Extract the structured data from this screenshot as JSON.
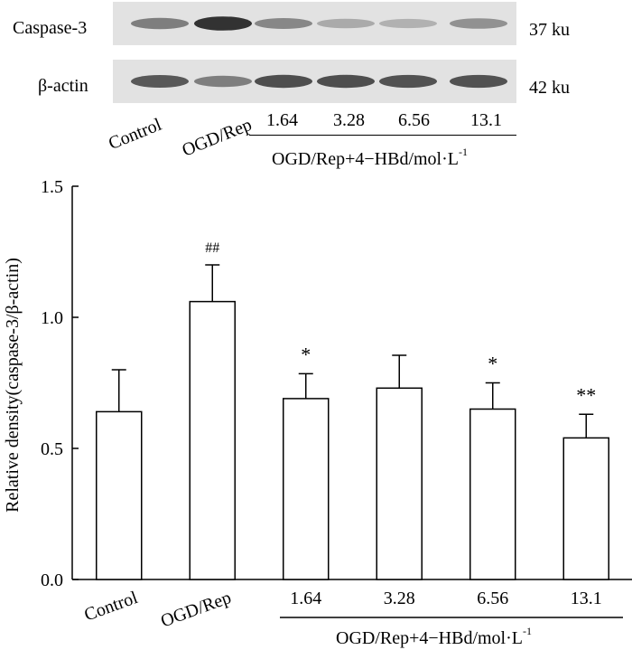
{
  "blot": {
    "rows": [
      {
        "label": "Caspase-3",
        "size": "37 ku",
        "intensity": [
          0.55,
          0.95,
          0.5,
          0.32,
          0.28,
          0.45
        ]
      },
      {
        "label": "β-actin",
        "size": "42 ku",
        "intensity": [
          0.75,
          0.55,
          0.8,
          0.8,
          0.78,
          0.78
        ]
      }
    ],
    "lane_labels": [
      "Control",
      "OGD/Rep",
      "1.64",
      "3.28",
      "6.56",
      "13.1"
    ],
    "group_label": "OGD/Rep+4−HBd/mol·L",
    "group_label_exp": "-1"
  },
  "chart_data": {
    "type": "bar",
    "categories": [
      "Control",
      "OGD/Rep",
      "1.64",
      "3.28",
      "6.56",
      "13.1"
    ],
    "values": [
      0.64,
      1.06,
      0.69,
      0.73,
      0.65,
      0.54
    ],
    "errors": [
      0.16,
      0.14,
      0.095,
      0.125,
      0.1,
      0.09
    ],
    "annotations": [
      "",
      "##",
      "*",
      "",
      "*",
      "**"
    ],
    "ylabel": "Relative density(caspase-3/β-actin)",
    "ylim": [
      0.0,
      1.5
    ],
    "yticks": [
      "0.0",
      "0.5",
      "1.0",
      "1.5"
    ],
    "ytick_values": [
      0.0,
      0.5,
      1.0,
      1.5
    ],
    "group_label": "OGD/Rep+4−HBd/mol·L",
    "group_label_exp": "-1",
    "grid": false,
    "bar_fill": "#ffffff",
    "bar_stroke": "#000000"
  }
}
